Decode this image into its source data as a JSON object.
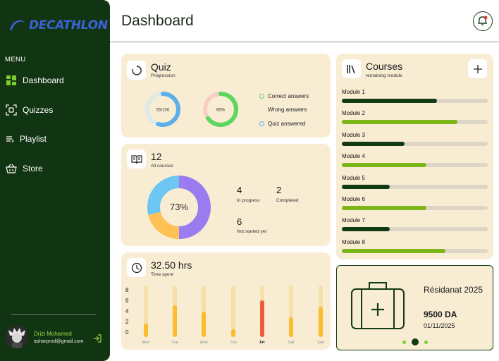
{
  "sidebar": {
    "brand": "DECATHLON",
    "menu_label": "MENU",
    "items": [
      {
        "label": "Dashboard",
        "icon": "dashboard-grid-icon"
      },
      {
        "label": "Quizzes",
        "icon": "quiz-icon"
      },
      {
        "label": "Playlist",
        "icon": "playlist-icon"
      },
      {
        "label": "Store",
        "icon": "store-basket-icon"
      }
    ],
    "user": {
      "name": "Drizi Mohamed",
      "email": "asharprod@gmail.com"
    }
  },
  "header": {
    "title": "Dashboard"
  },
  "quiz": {
    "title": "Quiz",
    "subtitle": "Progression",
    "donut1_label": "55/100",
    "donut1_value": 0.55,
    "donut2_label": "65%",
    "donut2_value": 0.65,
    "legend": [
      {
        "label": "Correct answers",
        "color": "#5cd65c"
      },
      {
        "label": "Wrong answers",
        "color": "#f8ecd3"
      },
      {
        "label": "Quiz answered",
        "color": "#5bb0ea"
      }
    ]
  },
  "courses_stats": {
    "count": "12",
    "subtitle": "All courses",
    "donut_label": "73%",
    "segments": [
      {
        "value": 50,
        "color": "#9b7cf0"
      },
      {
        "value": 21,
        "color": "#ffc155"
      },
      {
        "value": 29,
        "color": "#6cc6f2"
      }
    ],
    "stats": [
      {
        "value": "4",
        "label": "In progress"
      },
      {
        "value": "2",
        "label": "Completed"
      },
      {
        "value": "6",
        "label": "Not started yet"
      }
    ]
  },
  "time": {
    "value": "32.50 hrs",
    "subtitle": "Time spent",
    "y_ticks": [
      "8",
      "6",
      "4",
      "2",
      "0"
    ],
    "days": [
      {
        "day": "Mon",
        "value": 2.4,
        "active": false
      },
      {
        "day": "Tue",
        "value": 5.6,
        "active": false
      },
      {
        "day": "Wed",
        "value": 4.4,
        "active": false
      },
      {
        "day": "Thu",
        "value": 1.4,
        "active": false
      },
      {
        "day": "Fri",
        "value": 6.4,
        "active": true
      },
      {
        "day": "Sat",
        "value": 3.4,
        "active": false
      },
      {
        "day": "Sun",
        "value": 5.3,
        "active": false
      }
    ],
    "max": 9
  },
  "courses": {
    "title": "Courses",
    "subtitle": "remaining module",
    "modules": [
      {
        "label": "Module 1",
        "progress": 0.65,
        "color": "#123a14"
      },
      {
        "label": "Module 2",
        "progress": 0.79,
        "color": "#7cb518"
      },
      {
        "label": "Module 3",
        "progress": 0.43,
        "color": "#123a14"
      },
      {
        "label": "Module 4",
        "progress": 0.58,
        "color": "#7cb518"
      },
      {
        "label": "Module 5",
        "progress": 0.33,
        "color": "#123a14"
      },
      {
        "label": "Module 6",
        "progress": 0.58,
        "color": "#7cb518"
      },
      {
        "label": "Module 7",
        "progress": 0.33,
        "color": "#123a14"
      },
      {
        "label": "Module 8",
        "progress": 0.71,
        "color": "#7cb518"
      }
    ]
  },
  "promo": {
    "title": "Résidanat 2025",
    "price": "9500 DA",
    "date": "01/11/2025",
    "pages": 3,
    "active_page": 1
  }
}
